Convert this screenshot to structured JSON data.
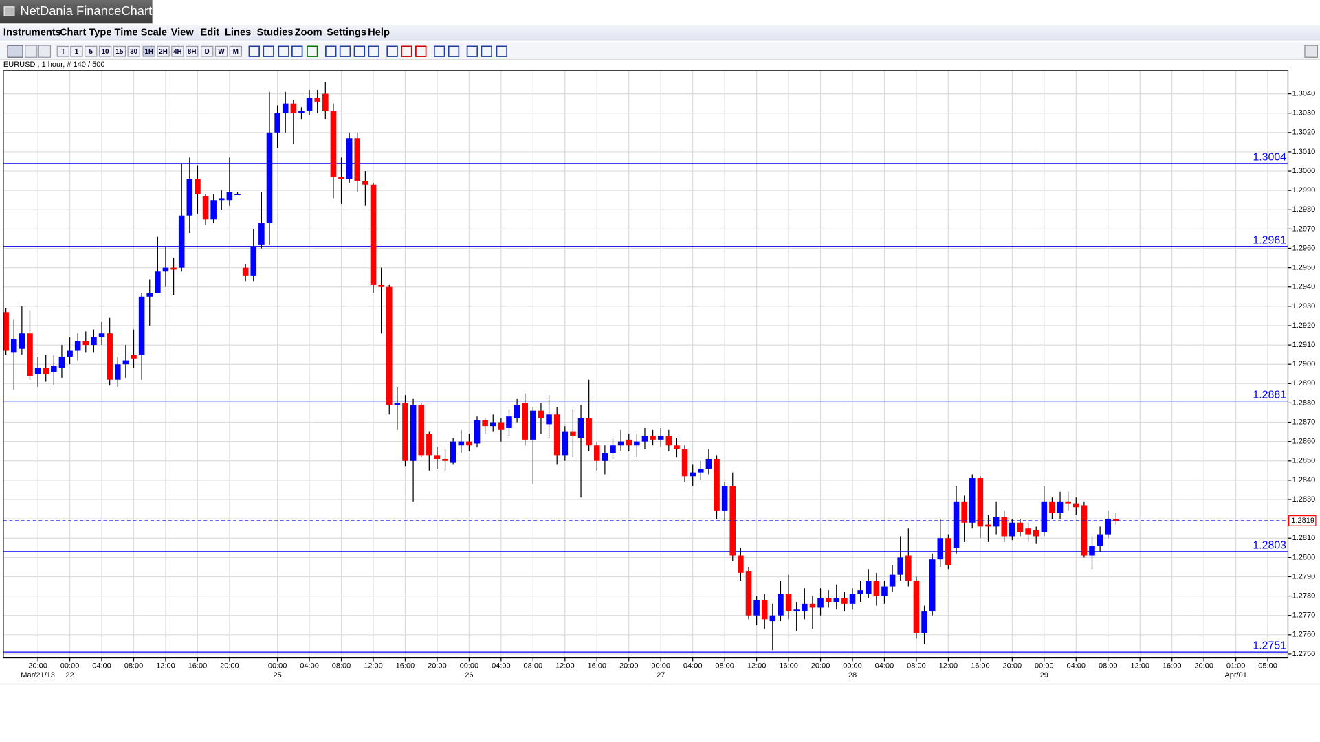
{
  "ui": {
    "app_title": "NetDania FinanceChart",
    "menu": [
      "Instruments",
      "Chart Type",
      "Time Scale",
      "View",
      "Edit",
      "Lines",
      "Studies",
      "Zoom",
      "Settings",
      "Help"
    ],
    "toolbar": [
      "T",
      "1",
      "5",
      "10",
      "15",
      "30",
      "1H",
      "2H",
      "4H",
      "8H",
      "D",
      "W",
      "M"
    ],
    "instrument_info": "EURUSD , 1 hour, # 140 / 500"
  },
  "chart_data": {
    "type": "candlestick",
    "up_color": "#0000ff",
    "down_color": "#ff0000",
    "level_color": "#0000ff",
    "last_color": "#ff0000",
    "grid": true,
    "categories": [
      null,
      null,
      null,
      null,
      "20:00",
      null,
      null,
      null,
      "00:00",
      null,
      null,
      null,
      "04:00",
      null,
      null,
      null,
      "08:00",
      null,
      null,
      null,
      "12:00",
      null,
      null,
      null,
      "16:00",
      null,
      null,
      null,
      "20:00",
      null,
      null,
      null,
      null,
      null,
      "00:00",
      null,
      null,
      null,
      "04:00",
      null,
      null,
      null,
      "08:00",
      null,
      null,
      null,
      "12:00",
      null,
      null,
      null,
      "16:00",
      null,
      null,
      null,
      "20:00",
      null,
      null,
      null,
      "00:00",
      null,
      null,
      null,
      "04:00",
      null,
      null,
      null,
      "08:00",
      null,
      null,
      null,
      "12:00",
      null,
      null,
      null,
      "16:00",
      null,
      null,
      null,
      "20:00",
      null,
      null,
      null,
      "00:00",
      null,
      null,
      null,
      "04:00",
      null,
      null,
      null,
      "08:00",
      null,
      null,
      null,
      "12:00",
      null,
      null,
      null,
      "16:00",
      null,
      null,
      null,
      "20:00",
      null,
      null,
      null,
      "00:00",
      null,
      null,
      null,
      "04:00",
      null,
      null,
      null,
      "08:00",
      null,
      null,
      null,
      "12:00",
      null,
      null,
      null,
      "16:00",
      null,
      null,
      null,
      "20:00",
      null,
      null,
      null,
      "00:00",
      null,
      null,
      null,
      "04:00",
      null,
      null,
      null,
      "08:00",
      null,
      null,
      null,
      "12:00",
      null,
      null,
      null,
      "16:00",
      null,
      null,
      null,
      "20:00",
      null,
      null,
      null,
      "01:00",
      null,
      null,
      null,
      "05:00",
      null,
      null
    ],
    "dates": [
      null,
      null,
      null,
      null,
      "Mar/21/13",
      null,
      null,
      null,
      "22",
      null,
      null,
      null,
      null,
      null,
      null,
      null,
      null,
      null,
      null,
      null,
      null,
      null,
      null,
      null,
      null,
      null,
      null,
      null,
      null,
      null,
      null,
      null,
      null,
      null,
      "25",
      null,
      null,
      null,
      null,
      null,
      null,
      null,
      null,
      null,
      null,
      null,
      null,
      null,
      null,
      null,
      null,
      null,
      null,
      null,
      null,
      null,
      null,
      null,
      "26",
      null,
      null,
      null,
      null,
      null,
      null,
      null,
      null,
      null,
      null,
      null,
      null,
      null,
      null,
      null,
      null,
      null,
      null,
      null,
      null,
      null,
      null,
      null,
      "27",
      null,
      null,
      null,
      null,
      null,
      null,
      null,
      null,
      null,
      null,
      null,
      null,
      null,
      null,
      null,
      null,
      null,
      null,
      null,
      null,
      null,
      null,
      null,
      "28",
      null,
      null,
      null,
      null,
      null,
      null,
      null,
      null,
      null,
      null,
      null,
      null,
      null,
      null,
      null,
      null,
      null,
      null,
      null,
      null,
      null,
      null,
      null,
      "29",
      null,
      null,
      null,
      null,
      null,
      null,
      null,
      null,
      null,
      null,
      null,
      null,
      null,
      null,
      null,
      null,
      null,
      null,
      null,
      null,
      null,
      null,
      null,
      "Apr/01",
      null,
      null,
      null,
      null,
      null,
      null
    ],
    "open": [
      1.2927,
      1.2906,
      1.2908,
      1.2916,
      1.2895,
      1.2898,
      1.2896,
      1.2898,
      1.2904,
      1.2907,
      1.2912,
      1.291,
      1.2914,
      1.2916,
      1.2892,
      1.29,
      1.2905,
      1.2905,
      1.2935,
      1.2937,
      1.2948,
      1.295,
      1.295,
      1.2977,
      1.2996,
      1.2987,
      1.2975,
      1.2985,
      1.2985,
      1.2988,
      1.295,
      1.2946,
      1.2962,
      1.2973,
      1.302,
      1.303,
      1.3035,
      1.303,
      1.3031,
      1.3038,
      1.304,
      1.3031,
      1.2997,
      1.2996,
      1.3017,
      1.2995,
      1.2993,
      1.2941,
      1.294,
      1.2879,
      1.288,
      1.285,
      1.2879,
      1.2864,
      1.2853,
      1.2851,
      1.2849,
      1.2858,
      1.286,
      1.2859,
      1.2871,
      1.2868,
      1.287,
      1.2867,
      1.2872,
      1.288,
      1.2861,
      1.2876,
      1.2869,
      1.2874,
      1.2853,
      1.2865,
      1.2862,
      1.2872,
      1.2858,
      1.285,
      1.2854,
      1.2858,
      1.2861,
      1.2858,
      1.286,
      1.2863,
      1.2861,
      1.2863,
      1.2858,
      1.2856,
      1.2842,
      1.2844,
      1.2846,
      1.2851,
      1.2824,
      1.2837,
      1.2801,
      1.2793,
      1.277,
      1.2778,
      1.2767,
      1.277,
      1.2781,
      1.2772,
      1.2772,
      1.2776,
      1.2774,
      1.2779,
      1.2777,
      1.2779,
      1.2776,
      1.2781,
      1.2781,
      1.2788,
      1.278,
      1.2785,
      1.2791,
      1.2801,
      1.2788,
      1.2761,
      1.2772,
      1.2799,
      1.281,
      1.2805,
      1.2829,
      1.2818,
      1.2841,
      1.2817,
      1.2816,
      1.2821,
      1.2811,
      1.2818,
      1.2815,
      1.2814,
      1.2813,
      1.2829,
      1.2823,
      1.2829,
      1.2828,
      1.2827,
      1.2801,
      1.2806,
      1.2812,
      1.282,
      null,
      null,
      null,
      null,
      null,
      null,
      null,
      null,
      null,
      null,
      null,
      null,
      null,
      null,
      null,
      null,
      null,
      null,
      null,
      null,
      null
    ],
    "high": [
      1.2929,
      1.2923,
      1.293,
      1.2928,
      1.2904,
      1.2905,
      1.2905,
      1.291,
      1.2914,
      1.2916,
      1.2917,
      1.2918,
      1.2922,
      1.2924,
      1.2904,
      1.291,
      1.2918,
      1.2937,
      1.2944,
      1.2966,
      1.2961,
      1.2955,
      1.3004,
      1.3007,
      1.3003,
      1.2988,
      1.2988,
      1.299,
      1.3007,
      1.2989,
      1.2952,
      1.297,
      1.2989,
      1.3041,
      1.3034,
      1.3041,
      1.3037,
      1.3033,
      1.3042,
      1.3042,
      1.3046,
      1.3035,
      1.3007,
      1.302,
      1.302,
      1.3,
      1.2994,
      1.295,
      1.2941,
      1.2888,
      1.2884,
      1.2882,
      1.288,
      1.2865,
      1.2857,
      1.2856,
      1.2862,
      1.2866,
      1.2864,
      1.2873,
      1.2872,
      1.2874,
      1.2872,
      1.2877,
      1.2882,
      1.2885,
      1.2878,
      1.288,
      1.2884,
      1.2878,
      1.2868,
      1.2877,
      1.2879,
      1.2892,
      1.286,
      1.2858,
      1.2862,
      1.2866,
      1.2864,
      1.2864,
      1.2867,
      1.2866,
      1.2867,
      1.2866,
      1.2862,
      1.2858,
      1.2848,
      1.285,
      1.2856,
      1.2853,
      1.2839,
      1.2844,
      1.2805,
      1.2795,
      1.278,
      1.2781,
      1.2776,
      1.2788,
      1.2791,
      1.2777,
      1.2784,
      1.278,
      1.2784,
      1.2783,
      1.2786,
      1.2782,
      1.2784,
      1.2788,
      1.2794,
      1.2792,
      1.2788,
      1.2796,
      1.2811,
      1.2815,
      1.279,
      1.2775,
      1.2802,
      1.282,
      1.2812,
      1.2837,
      1.2832,
      1.2843,
      1.2842,
      1.2822,
      1.2829,
      1.2824,
      1.282,
      1.282,
      1.2818,
      1.2816,
      1.2837,
      1.2831,
      1.2834,
      1.2834,
      1.2831,
      1.2829,
      1.2811,
      1.2816,
      1.2824,
      1.2823,
      null,
      null,
      null,
      null,
      null,
      null,
      null,
      null,
      null,
      null,
      null,
      null,
      null,
      null,
      null,
      null,
      null,
      null,
      null,
      null,
      null
    ],
    "low": [
      1.2905,
      1.2887,
      1.2905,
      1.2892,
      1.2888,
      1.2891,
      1.2889,
      1.2893,
      1.29,
      1.2902,
      1.2906,
      1.2906,
      1.291,
      1.2889,
      1.2888,
      1.2893,
      1.2898,
      1.2892,
      1.292,
      1.2938,
      1.294,
      1.2936,
      1.2948,
      1.2968,
      1.2978,
      1.2972,
      1.2973,
      1.298,
      1.2982,
      1.2988,
      1.2943,
      1.2943,
      1.296,
      1.2962,
      1.3012,
      1.302,
      1.3014,
      1.3027,
      1.3029,
      1.303,
      1.3027,
      1.2986,
      1.2983,
      1.2994,
      1.2989,
      1.2982,
      1.2937,
      1.2916,
      1.2874,
      1.2866,
      1.2847,
      1.2829,
      1.2852,
      1.2845,
      1.2846,
      1.2845,
      1.2848,
      1.2854,
      1.2855,
      1.2857,
      1.2864,
      1.2865,
      1.286,
      1.2863,
      1.287,
      1.2858,
      1.2838,
      1.2864,
      1.2862,
      1.2848,
      1.285,
      1.2852,
      1.2831,
      1.2855,
      1.2845,
      1.2843,
      1.2851,
      1.2855,
      1.2855,
      1.2852,
      1.2856,
      1.2858,
      1.2857,
      1.2855,
      1.2852,
      1.2839,
      1.2837,
      1.284,
      1.2843,
      1.282,
      1.2819,
      1.2798,
      1.2788,
      1.2768,
      1.2765,
      1.2763,
      1.2752,
      1.2767,
      1.2768,
      1.2762,
      1.2768,
      1.2763,
      1.277,
      1.2774,
      1.2773,
      1.2772,
      1.2773,
      1.2777,
      1.2779,
      1.2775,
      1.2776,
      1.2782,
      1.2788,
      1.2785,
      1.2758,
      1.2755,
      1.277,
      1.2795,
      1.2794,
      1.2802,
      1.2808,
      1.2815,
      1.281,
      1.2808,
      1.2812,
      1.2808,
      1.2809,
      1.2811,
      1.2808,
      1.2807,
      1.2811,
      1.282,
      1.282,
      1.2824,
      1.2822,
      1.28,
      1.2794,
      1.2803,
      1.281,
      1.2817,
      null,
      null,
      null,
      null,
      null,
      null,
      null,
      null,
      null,
      null,
      null,
      null,
      null,
      null,
      null,
      null,
      null,
      null,
      null,
      null,
      null
    ],
    "close": [
      1.2907,
      1.2913,
      1.2916,
      1.2894,
      1.2898,
      1.2895,
      1.2899,
      1.2904,
      1.2907,
      1.2912,
      1.291,
      1.2914,
      1.2916,
      1.2892,
      1.29,
      1.2902,
      1.2903,
      1.2935,
      1.2937,
      1.2948,
      1.295,
      1.2949,
      1.2977,
      1.2996,
      1.2988,
      1.2975,
      1.2985,
      1.2986,
      1.2989,
      1.2988,
      1.2946,
      1.2961,
      1.2973,
      1.302,
      1.303,
      1.3035,
      1.303,
      1.3031,
      1.3038,
      1.3036,
      1.3031,
      1.2997,
      1.2996,
      1.3017,
      1.2995,
      1.2993,
      1.2941,
      1.294,
      1.2879,
      1.288,
      1.285,
      1.2879,
      1.2853,
      1.2853,
      1.2851,
      1.285,
      1.286,
      1.286,
      1.2858,
      1.2871,
      1.2868,
      1.287,
      1.2866,
      1.2873,
      1.2879,
      1.2861,
      1.2876,
      1.2872,
      1.2874,
      1.2853,
      1.2865,
      1.2863,
      1.2872,
      1.2858,
      1.285,
      1.2854,
      1.2858,
      1.286,
      1.2858,
      1.286,
      1.2863,
      1.2861,
      1.2863,
      1.2858,
      1.2856,
      1.2842,
      1.2844,
      1.2846,
      1.2851,
      1.2824,
      1.2837,
      1.2801,
      1.2792,
      1.277,
      1.2778,
      1.2768,
      1.277,
      1.2781,
      1.2772,
      1.2773,
      1.2776,
      1.2774,
      1.2779,
      1.2777,
      1.2779,
      1.2776,
      1.2781,
      1.2783,
      1.2788,
      1.278,
      1.2785,
      1.2791,
      1.28,
      1.2788,
      1.2761,
      1.2772,
      1.2799,
      1.281,
      1.2796,
      1.2829,
      1.2818,
      1.2841,
      1.2816,
      1.2816,
      1.2821,
      1.2811,
      1.2818,
      1.2813,
      1.2812,
      1.2811,
      1.2829,
      1.2823,
      1.2829,
      1.2828,
      1.2826,
      1.2801,
      1.2806,
      1.2812,
      1.282,
      1.2819,
      null,
      null,
      null,
      null,
      null,
      null,
      null,
      null,
      null,
      null,
      null,
      null,
      null,
      null,
      null,
      null,
      null,
      null,
      null,
      null,
      null
    ],
    "levels": [
      1.3004,
      1.2961,
      1.2881,
      1.2803,
      1.2751
    ],
    "last_price": 1.2819,
    "ylim": [
      1.2748,
      1.3052
    ],
    "yticks": [
      {
        "value": 1.275,
        "label": "1.2750"
      },
      {
        "value": 1.276,
        "label": "1.2760"
      },
      {
        "value": 1.277,
        "label": "1.2770"
      },
      {
        "value": 1.278,
        "label": "1.2780"
      },
      {
        "value": 1.279,
        "label": "1.2790"
      },
      {
        "value": 1.28,
        "label": "1.2800"
      },
      {
        "value": 1.281,
        "label": "1.2810"
      },
      {
        "value": 1.282,
        "label": "1.2820"
      },
      {
        "value": 1.283,
        "label": "1.2830"
      },
      {
        "value": 1.284,
        "label": "1.2840"
      },
      {
        "value": 1.285,
        "label": "1.2850"
      },
      {
        "value": 1.286,
        "label": "1.2860"
      },
      {
        "value": 1.287,
        "label": "1.2870"
      },
      {
        "value": 1.288,
        "label": "1.2880"
      },
      {
        "value": 1.289,
        "label": "1.2890"
      },
      {
        "value": 1.29,
        "label": "1.2900"
      },
      {
        "value": 1.291,
        "label": "1.2910"
      },
      {
        "value": 1.292,
        "label": "1.2920"
      },
      {
        "value": 1.293,
        "label": "1.2930"
      },
      {
        "value": 1.294,
        "label": "1.2940"
      },
      {
        "value": 1.295,
        "label": "1.2950"
      },
      {
        "value": 1.296,
        "label": "1.2960"
      },
      {
        "value": 1.297,
        "label": "1.2970"
      },
      {
        "value": 1.298,
        "label": "1.2980"
      },
      {
        "value": 1.299,
        "label": "1.2990"
      },
      {
        "value": 1.3,
        "label": "1.3000"
      },
      {
        "value": 1.301,
        "label": "1.3010"
      },
      {
        "value": 1.302,
        "label": "1.3020"
      },
      {
        "value": 1.303,
        "label": "1.3030"
      },
      {
        "value": 1.304,
        "label": "1.3040"
      }
    ]
  }
}
